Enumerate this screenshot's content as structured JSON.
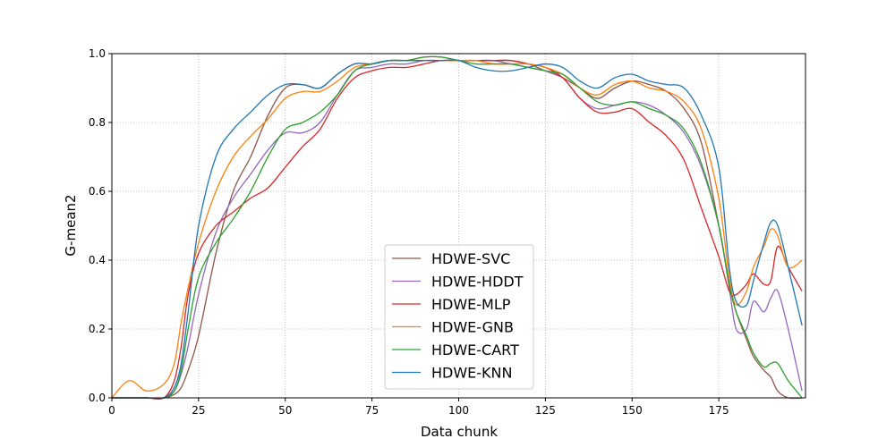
{
  "chart_data": {
    "type": "line",
    "title": "",
    "xlabel": "Data chunk",
    "ylabel": "G-mean2",
    "xlim": [
      0,
      200
    ],
    "ylim": [
      0,
      1.0
    ],
    "xticks": [
      0,
      25,
      50,
      75,
      100,
      125,
      150,
      175
    ],
    "yticks": [
      0.0,
      0.2,
      0.4,
      0.6,
      0.8,
      1.0
    ],
    "xtick_labels": [
      "0",
      "25",
      "50",
      "75",
      "100",
      "125",
      "150",
      "175"
    ],
    "ytick_labels": [
      "0.0",
      "0.2",
      "0.4",
      "0.6",
      "0.8",
      "1.0"
    ],
    "grid": true,
    "legend_position": "bottom-center",
    "x": [
      0,
      5,
      10,
      15,
      18,
      20,
      22,
      25,
      30,
      35,
      40,
      45,
      50,
      55,
      60,
      65,
      70,
      75,
      80,
      85,
      90,
      95,
      100,
      105,
      110,
      115,
      120,
      125,
      130,
      135,
      140,
      145,
      150,
      155,
      160,
      165,
      170,
      175,
      178,
      180,
      183,
      185,
      188,
      190,
      192,
      195,
      199
    ],
    "series": [
      {
        "name": "HDWE-SVC",
        "color": "#8c564b",
        "values": [
          0.0,
          0.0,
          0.0,
          0.0,
          0.01,
          0.03,
          0.08,
          0.18,
          0.42,
          0.6,
          0.7,
          0.82,
          0.9,
          0.91,
          0.9,
          0.94,
          0.97,
          0.97,
          0.98,
          0.98,
          0.99,
          0.99,
          0.98,
          0.98,
          0.98,
          0.98,
          0.97,
          0.95,
          0.93,
          0.9,
          0.87,
          0.9,
          0.92,
          0.91,
          0.89,
          0.84,
          0.74,
          0.5,
          0.33,
          0.25,
          0.17,
          0.12,
          0.08,
          0.06,
          0.02,
          0.0,
          0.0
        ]
      },
      {
        "name": "HDWE-HDDT",
        "color": "#9467bd",
        "values": [
          0.0,
          0.0,
          0.0,
          0.0,
          0.02,
          0.07,
          0.15,
          0.3,
          0.48,
          0.58,
          0.65,
          0.72,
          0.77,
          0.77,
          0.8,
          0.88,
          0.95,
          0.96,
          0.97,
          0.97,
          0.98,
          0.98,
          0.98,
          0.98,
          0.98,
          0.97,
          0.96,
          0.95,
          0.93,
          0.87,
          0.84,
          0.85,
          0.86,
          0.85,
          0.82,
          0.77,
          0.67,
          0.5,
          0.32,
          0.2,
          0.2,
          0.28,
          0.25,
          0.29,
          0.31,
          0.2,
          0.02
        ]
      },
      {
        "name": "HDWE-MLP",
        "color": "#d62728",
        "values": [
          0.0,
          0.0,
          0.0,
          0.0,
          0.05,
          0.15,
          0.3,
          0.42,
          0.5,
          0.54,
          0.58,
          0.61,
          0.67,
          0.73,
          0.78,
          0.87,
          0.93,
          0.95,
          0.96,
          0.96,
          0.97,
          0.98,
          0.98,
          0.98,
          0.98,
          0.98,
          0.97,
          0.96,
          0.93,
          0.87,
          0.83,
          0.83,
          0.84,
          0.8,
          0.76,
          0.69,
          0.55,
          0.41,
          0.31,
          0.3,
          0.33,
          0.36,
          0.33,
          0.34,
          0.44,
          0.38,
          0.31
        ]
      },
      {
        "name": "HDWE-GNB",
        "color": "#ff7f0e",
        "values": [
          0.0,
          0.05,
          0.02,
          0.04,
          0.1,
          0.22,
          0.32,
          0.45,
          0.6,
          0.7,
          0.76,
          0.81,
          0.87,
          0.89,
          0.89,
          0.92,
          0.96,
          0.97,
          0.98,
          0.98,
          0.98,
          0.98,
          0.98,
          0.98,
          0.97,
          0.97,
          0.97,
          0.96,
          0.94,
          0.9,
          0.88,
          0.91,
          0.92,
          0.9,
          0.89,
          0.86,
          0.78,
          0.58,
          0.35,
          0.27,
          0.31,
          0.38,
          0.44,
          0.49,
          0.47,
          0.38,
          0.4
        ]
      },
      {
        "name": "HDWE-CART",
        "color": "#2ca02c",
        "values": [
          0.0,
          0.0,
          0.0,
          0.0,
          0.02,
          0.08,
          0.2,
          0.35,
          0.45,
          0.52,
          0.6,
          0.7,
          0.78,
          0.8,
          0.83,
          0.88,
          0.95,
          0.97,
          0.98,
          0.98,
          0.99,
          0.99,
          0.98,
          0.97,
          0.97,
          0.97,
          0.96,
          0.95,
          0.94,
          0.9,
          0.86,
          0.85,
          0.86,
          0.84,
          0.82,
          0.78,
          0.68,
          0.5,
          0.33,
          0.25,
          0.18,
          0.13,
          0.09,
          0.1,
          0.1,
          0.05,
          0.0
        ]
      },
      {
        "name": "HDWE-KNN",
        "color": "#1f77b4",
        "values": [
          0.0,
          0.0,
          0.0,
          0.0,
          0.03,
          0.1,
          0.25,
          0.5,
          0.7,
          0.78,
          0.83,
          0.88,
          0.91,
          0.91,
          0.9,
          0.94,
          0.97,
          0.97,
          0.98,
          0.98,
          0.98,
          0.98,
          0.98,
          0.96,
          0.95,
          0.95,
          0.96,
          0.97,
          0.96,
          0.92,
          0.9,
          0.93,
          0.94,
          0.92,
          0.91,
          0.9,
          0.82,
          0.67,
          0.38,
          0.28,
          0.27,
          0.34,
          0.45,
          0.51,
          0.5,
          0.38,
          0.21
        ]
      }
    ]
  }
}
